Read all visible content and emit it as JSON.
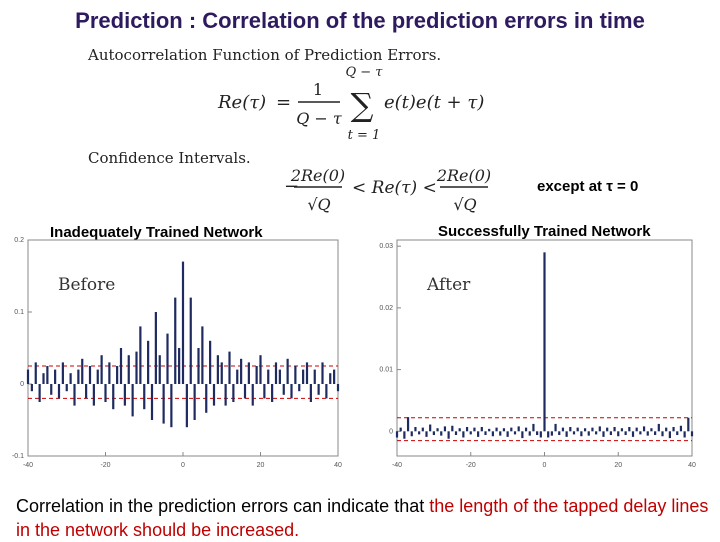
{
  "slide": {
    "title": "Prediction : Correlation of the prediction errors in time",
    "autocorr_heading": "Autocorrelation Function of Prediction Errors.",
    "confidence_heading": "Confidence Intervals.",
    "except_note": "except at τ = 0",
    "equation1": {
      "lhs": "Re(τ)",
      "sum_upper": "Q − τ",
      "sum_lower": "t = 1",
      "numerator": "1",
      "denominator": "Q − τ",
      "term": "e(t)e(t + τ)"
    },
    "equation2": {
      "left_num": "2Re(0)",
      "left_den": "√Q",
      "middle": "< Re(τ) <",
      "right_num": "2Re(0)",
      "right_den": "√Q"
    },
    "caption_plain": "Correlation in the prediction errors can indicate that ",
    "caption_red": "the length of the tapped delay lines in the network should be increased."
  },
  "colors": {
    "title": "#2e1a5e",
    "bars": "#1f2a60",
    "bounds": "#cc0000",
    "emphasis": "#c00000"
  },
  "chart_data": [
    {
      "type": "bar",
      "title": "Inadequately Trained Network",
      "annotation": "Before",
      "x_ticks": [
        -40,
        -20,
        0,
        20,
        40
      ],
      "y_ticks": [
        "-0.1",
        "0",
        "0.1",
        "0.2"
      ],
      "xlim": [
        -40,
        40
      ],
      "ylim": [
        -0.1,
        0.2
      ],
      "confidence_bounds": [
        -0.02,
        0.025
      ],
      "x": [
        -40,
        -39,
        -38,
        -37,
        -36,
        -35,
        -34,
        -33,
        -32,
        -31,
        -30,
        -29,
        -28,
        -27,
        -26,
        -25,
        -24,
        -23,
        -22,
        -21,
        -20,
        -19,
        -18,
        -17,
        -16,
        -15,
        -14,
        -13,
        -12,
        -11,
        -10,
        -9,
        -8,
        -7,
        -6,
        -5,
        -4,
        -3,
        -2,
        -1,
        0,
        1,
        2,
        3,
        4,
        5,
        6,
        7,
        8,
        9,
        10,
        11,
        12,
        13,
        14,
        15,
        16,
        17,
        18,
        19,
        20,
        21,
        22,
        23,
        24,
        25,
        26,
        27,
        28,
        29,
        30,
        31,
        32,
        33,
        34,
        35,
        36,
        37,
        38,
        39,
        40
      ],
      "values": [
        0.02,
        -0.01,
        0.03,
        -0.025,
        0.015,
        0.025,
        -0.015,
        0.02,
        -0.02,
        0.03,
        -0.01,
        0.015,
        -0.03,
        0.02,
        0.035,
        -0.02,
        0.025,
        -0.03,
        0.02,
        0.04,
        -0.025,
        0.03,
        -0.035,
        0.025,
        0.05,
        -0.03,
        0.04,
        -0.045,
        0.045,
        0.08,
        -0.035,
        0.06,
        -0.05,
        0.1,
        0.04,
        -0.055,
        0.07,
        -0.06,
        0.12,
        0.05,
        0.17,
        -0.06,
        0.12,
        -0.05,
        0.05,
        0.08,
        -0.04,
        0.06,
        -0.03,
        0.04,
        0.03,
        -0.03,
        0.045,
        -0.025,
        0.02,
        0.035,
        -0.02,
        0.03,
        -0.03,
        0.025,
        0.04,
        -0.02,
        0.02,
        -0.025,
        0.03,
        0.02,
        -0.015,
        0.035,
        -0.02,
        0.025,
        -0.01,
        0.02,
        0.03,
        -0.025,
        0.02,
        -0.015,
        0.03,
        -0.02,
        0.015,
        0.02,
        -0.01
      ]
    },
    {
      "type": "bar",
      "title": "Successfully Trained Network",
      "annotation": "After",
      "x_ticks": [
        -40,
        -20,
        0,
        20,
        40
      ],
      "y_ticks": [
        "0",
        "0.01",
        "0.02",
        "0.03"
      ],
      "xlim": [
        -40,
        40
      ],
      "ylim": [
        -0.004,
        0.031
      ],
      "confidence_bounds": [
        -0.0015,
        0.0022
      ],
      "x": [
        -40,
        -39,
        -38,
        -37,
        -36,
        -35,
        -34,
        -33,
        -32,
        -31,
        -30,
        -29,
        -28,
        -27,
        -26,
        -25,
        -24,
        -23,
        -22,
        -21,
        -20,
        -19,
        -18,
        -17,
        -16,
        -15,
        -14,
        -13,
        -12,
        -11,
        -10,
        -9,
        -8,
        -7,
        -6,
        -5,
        -4,
        -3,
        -2,
        -1,
        0,
        1,
        2,
        3,
        4,
        5,
        6,
        7,
        8,
        9,
        10,
        11,
        12,
        13,
        14,
        15,
        16,
        17,
        18,
        19,
        20,
        21,
        22,
        23,
        24,
        25,
        26,
        27,
        28,
        29,
        30,
        31,
        32,
        33,
        34,
        35,
        36,
        37,
        38,
        39,
        40
      ],
      "values": [
        -0.001,
        0.0006,
        -0.0012,
        0.0023,
        -0.0008,
        0.0007,
        -0.0005,
        0.0006,
        -0.0009,
        0.0011,
        -0.0006,
        0.0005,
        -0.0007,
        0.0008,
        -0.0012,
        0.0009,
        -0.0006,
        0.0005,
        -0.001,
        0.0007,
        -0.0005,
        0.0006,
        -0.0009,
        0.0007,
        -0.0006,
        0.0004,
        -0.0008,
        0.0006,
        -0.0007,
        0.0005,
        -0.0009,
        0.0006,
        -0.0005,
        0.0008,
        -0.0011,
        0.0006,
        -0.0007,
        0.0012,
        -0.0006,
        -0.001,
        0.029,
        -0.001,
        -0.0007,
        0.0012,
        -0.0006,
        0.0006,
        -0.0009,
        0.0007,
        -0.0005,
        0.0006,
        -0.0008,
        0.0005,
        -0.0007,
        0.0006,
        -0.0005,
        0.0008,
        -0.0009,
        0.0006,
        -0.0006,
        0.0007,
        -0.0008,
        0.0005,
        -0.0006,
        0.0007,
        -0.0009,
        0.0006,
        -0.0005,
        0.0008,
        -0.0007,
        0.0005,
        -0.0006,
        0.0012,
        -0.0008,
        0.0006,
        -0.0011,
        0.0007,
        -0.0006,
        0.0009,
        -0.001,
        0.0022,
        -0.0008
      ]
    }
  ]
}
